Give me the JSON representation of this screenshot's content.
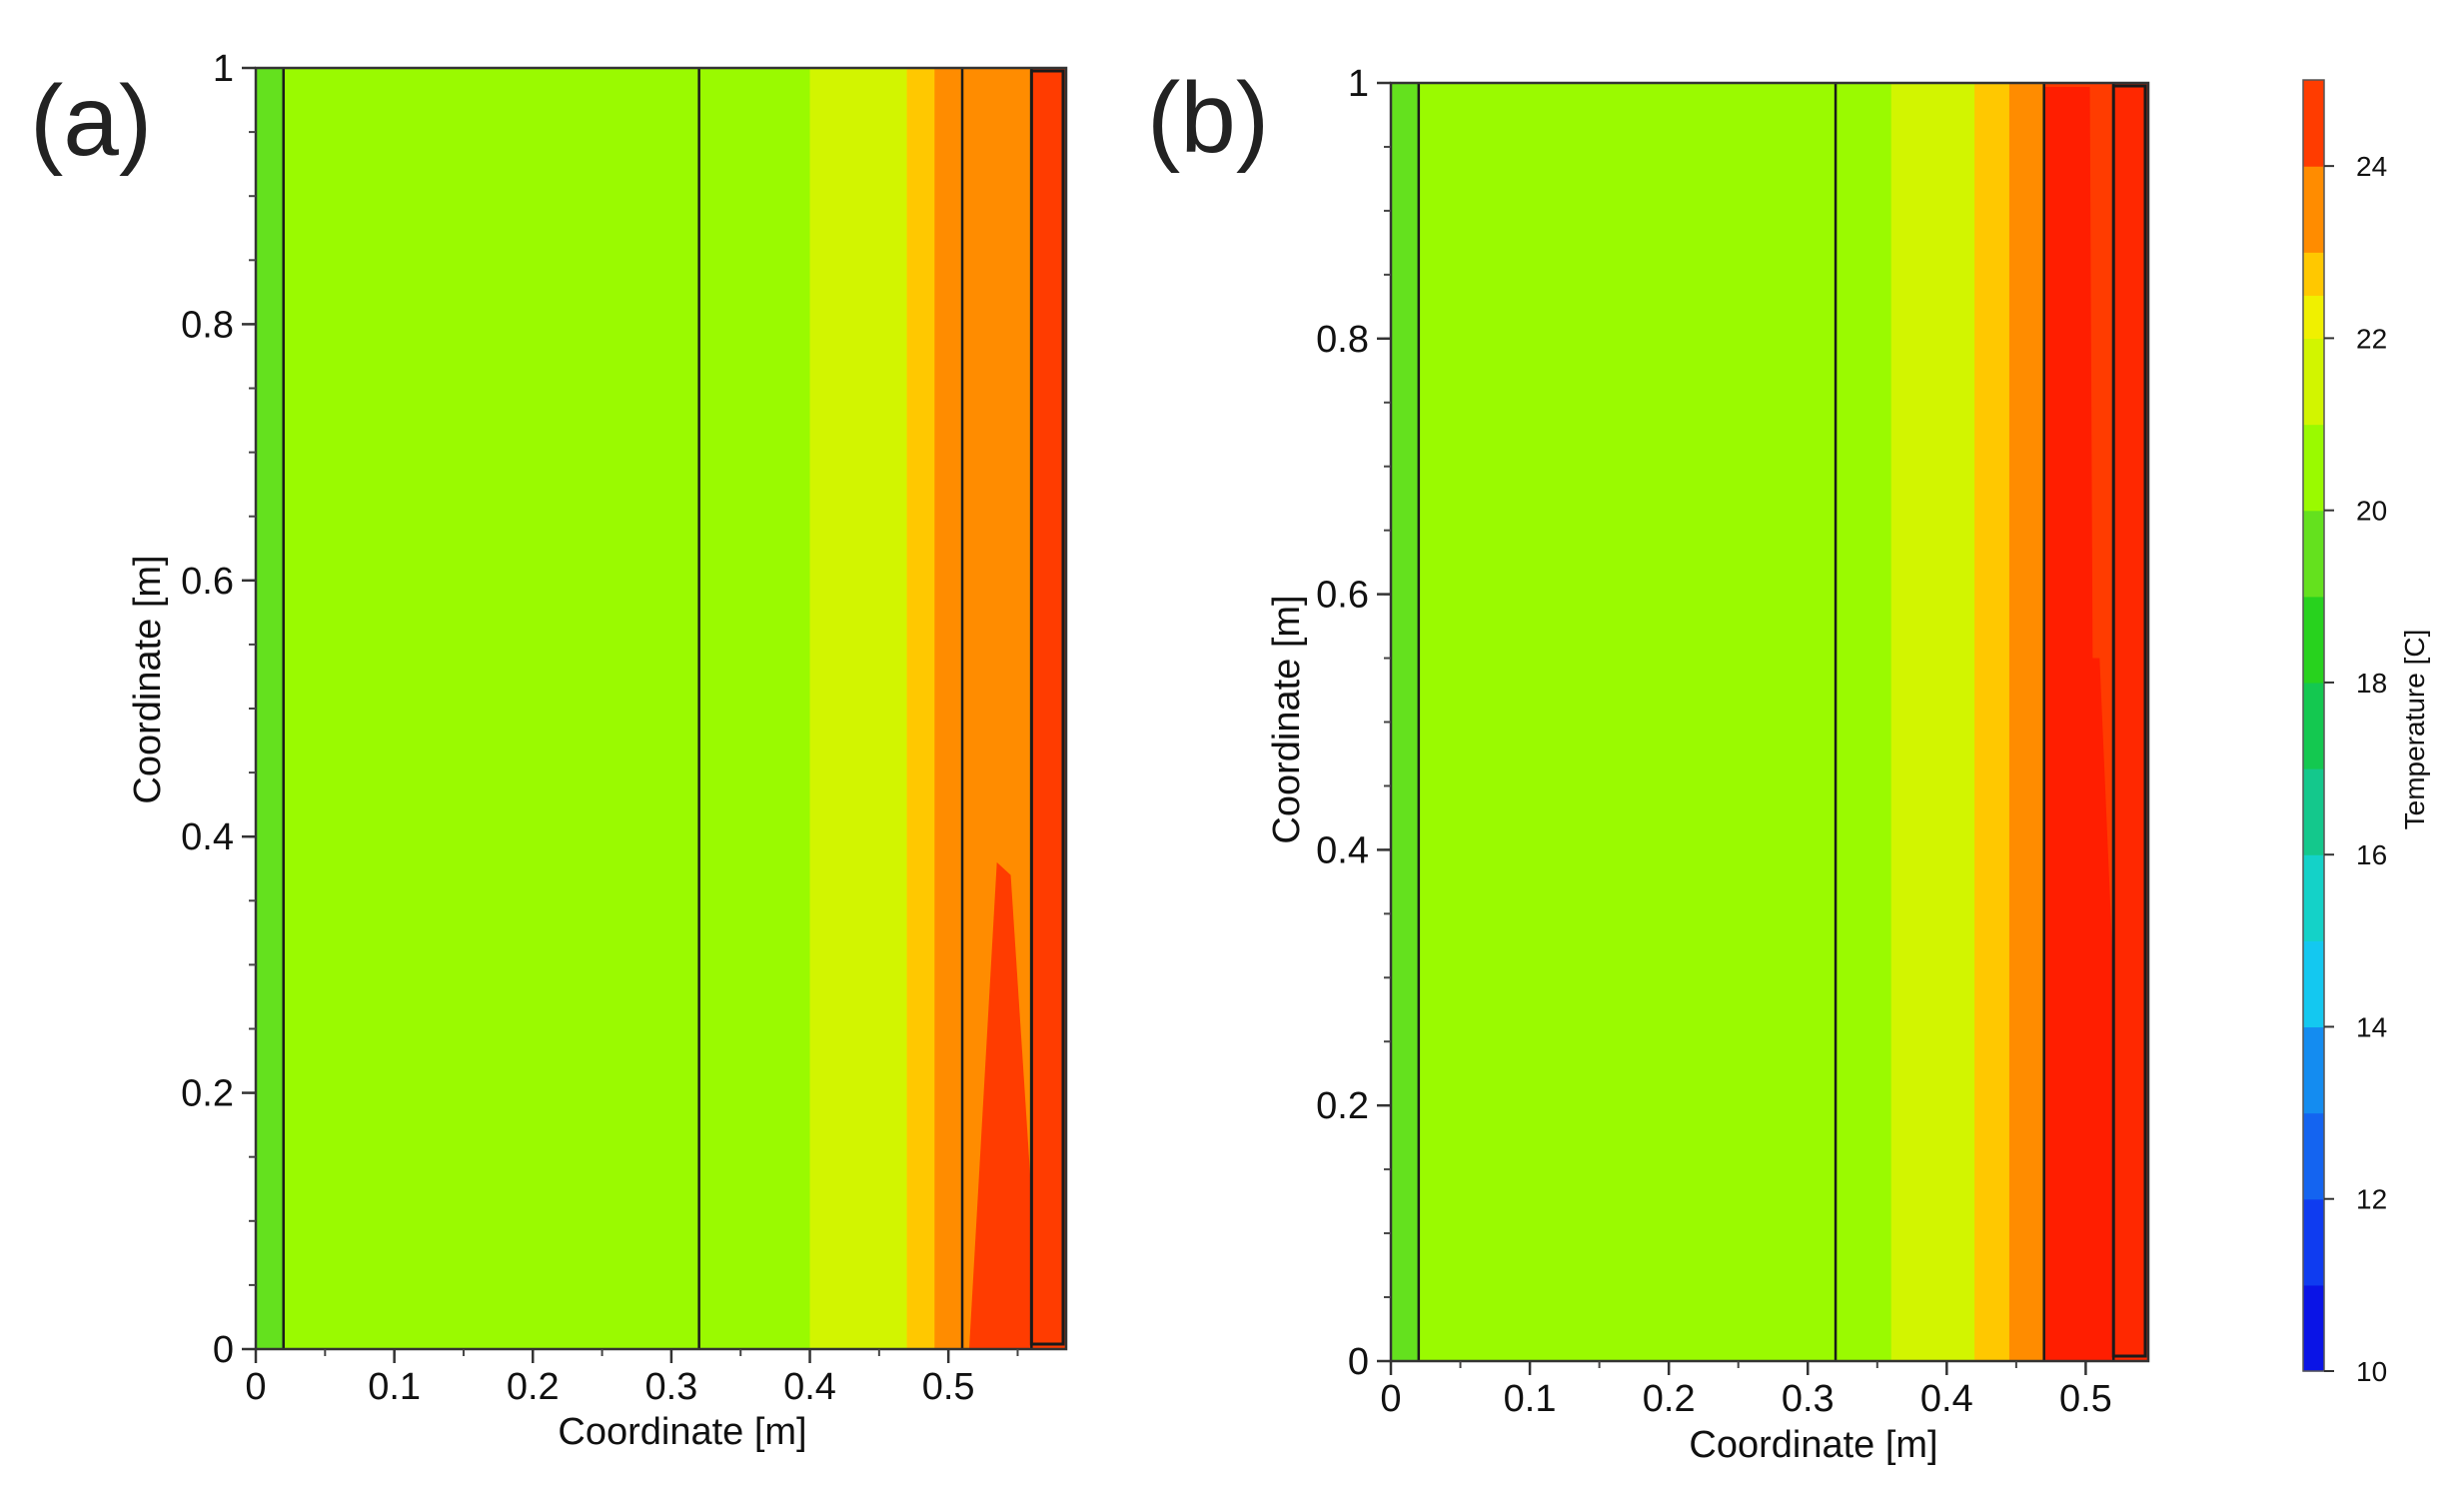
{
  "chart_data": [
    {
      "type": "heatmap",
      "panel_label": "(a)",
      "title": "",
      "xlabel": "Coordinate [m]",
      "ylabel": "Coordinate [m]",
      "xlim": [
        0,
        0.585
      ],
      "ylim": [
        0,
        1
      ],
      "x_ticks": [
        {
          "value": 0,
          "label": "0"
        },
        {
          "value": 0.1,
          "label": "0.1"
        },
        {
          "value": 0.2,
          "label": "0.2"
        },
        {
          "value": 0.3,
          "label": "0.3"
        },
        {
          "value": 0.4,
          "label": "0.4"
        },
        {
          "value": 0.5,
          "label": "0.5"
        }
      ],
      "y_ticks": [
        {
          "value": 0,
          "label": "0"
        },
        {
          "value": 0.2,
          "label": "0.2"
        },
        {
          "value": 0.4,
          "label": "0.4"
        },
        {
          "value": 0.6,
          "label": "0.6"
        },
        {
          "value": 0.8,
          "label": "0.8"
        },
        {
          "value": 1,
          "label": "1"
        }
      ],
      "layer_boundaries_m": [
        0.02,
        0.32,
        0.51,
        0.56
      ],
      "temperature_bands": [
        {
          "x_from": 0.0,
          "x_to": 0.02,
          "temperature_C": 19.8
        },
        {
          "x_from": 0.02,
          "x_to": 0.4,
          "temperature_C": 20.2
        },
        {
          "x_from": 0.4,
          "x_to": 0.445,
          "temperature_C": 21.0
        },
        {
          "x_from": 0.445,
          "x_to": 0.47,
          "temperature_C": 21.8
        },
        {
          "x_from": 0.47,
          "x_to": 0.49,
          "temperature_C": 22.5
        },
        {
          "x_from": 0.49,
          "x_to": 0.51,
          "temperature_C": 23.0
        },
        {
          "x_from": 0.51,
          "x_to": 0.56,
          "temperature_C": 23.8
        },
        {
          "x_from": 0.56,
          "x_to": 0.585,
          "temperature_C": 24.6
        }
      ]
    },
    {
      "type": "heatmap",
      "panel_label": "(b)",
      "title": "",
      "xlabel": "Coordinate [m]",
      "ylabel": "Coordinate [m]",
      "xlim": [
        0,
        0.545
      ],
      "ylim": [
        0,
        1
      ],
      "x_ticks": [
        {
          "value": 0,
          "label": "0"
        },
        {
          "value": 0.1,
          "label": "0.1"
        },
        {
          "value": 0.2,
          "label": "0.2"
        },
        {
          "value": 0.3,
          "label": "0.3"
        },
        {
          "value": 0.4,
          "label": "0.4"
        },
        {
          "value": 0.5,
          "label": "0.5"
        }
      ],
      "y_ticks": [
        {
          "value": 0,
          "label": "0"
        },
        {
          "value": 0.2,
          "label": "0.2"
        },
        {
          "value": 0.4,
          "label": "0.4"
        },
        {
          "value": 0.6,
          "label": "0.6"
        },
        {
          "value": 0.8,
          "label": "0.8"
        },
        {
          "value": 1,
          "label": "1"
        }
      ],
      "layer_boundaries_m": [
        0.02,
        0.32,
        0.47,
        0.52
      ],
      "temperature_bands": [
        {
          "x_from": 0.0,
          "x_to": 0.02,
          "temperature_C": 19.8
        },
        {
          "x_from": 0.02,
          "x_to": 0.36,
          "temperature_C": 20.2
        },
        {
          "x_from": 0.36,
          "x_to": 0.375,
          "temperature_C": 21.0
        },
        {
          "x_from": 0.375,
          "x_to": 0.4,
          "temperature_C": 21.4
        },
        {
          "x_from": 0.4,
          "x_to": 0.42,
          "temperature_C": 21.9
        },
        {
          "x_from": 0.42,
          "x_to": 0.445,
          "temperature_C": 22.5
        },
        {
          "x_from": 0.445,
          "x_to": 0.47,
          "temperature_C": 23.2
        },
        {
          "x_from": 0.47,
          "x_to": 0.545,
          "temperature_C": 24.2
        }
      ]
    }
  ],
  "colorbar": {
    "title": "Temperature [C]",
    "range": [
      10,
      25
    ],
    "ticks": [
      {
        "value": 10,
        "label": "10"
      },
      {
        "value": 12,
        "label": "12"
      },
      {
        "value": 14,
        "label": "14"
      },
      {
        "value": 16,
        "label": "16"
      },
      {
        "value": 18,
        "label": "18"
      },
      {
        "value": 20,
        "label": "20"
      },
      {
        "value": 22,
        "label": "22"
      },
      {
        "value": 24,
        "label": "24"
      }
    ],
    "levels": [
      {
        "from": 10,
        "to": 11,
        "color": "#0a14e6"
      },
      {
        "from": 11,
        "to": 12,
        "color": "#0f3cf0"
      },
      {
        "from": 12,
        "to": 13,
        "color": "#1464f0"
      },
      {
        "from": 13,
        "to": 14,
        "color": "#148cf0"
      },
      {
        "from": 14,
        "to": 15,
        "color": "#14c8f0"
      },
      {
        "from": 15,
        "to": 16,
        "color": "#14d2c8"
      },
      {
        "from": 16,
        "to": 17,
        "color": "#14c88c"
      },
      {
        "from": 17,
        "to": 18,
        "color": "#14c850"
      },
      {
        "from": 18,
        "to": 19,
        "color": "#28d21e"
      },
      {
        "from": 19,
        "to": 20,
        "color": "#64e11e"
      },
      {
        "from": 20,
        "to": 21,
        "color": "#9afa00"
      },
      {
        "from": 21,
        "to": 22,
        "color": "#d2f500"
      },
      {
        "from": 22,
        "to": 22.5,
        "color": "#f0f000"
      },
      {
        "from": 22.5,
        "to": 23,
        "color": "#ffc800"
      },
      {
        "from": 23,
        "to": 24,
        "color": "#ff8c00"
      },
      {
        "from": 24,
        "to": 25,
        "color": "#ff3c00"
      }
    ]
  }
}
